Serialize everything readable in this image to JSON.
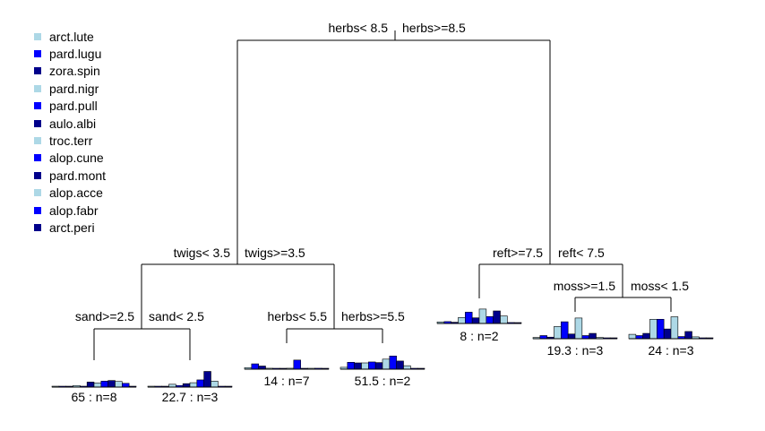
{
  "colors": {
    "light": "#add8e6",
    "blue": "#0000ff",
    "navy": "#00008b",
    "line": "#000000"
  },
  "legend": [
    {
      "label": "arct.lute",
      "color": "#add8e6"
    },
    {
      "label": "pard.lugu",
      "color": "#0000ff"
    },
    {
      "label": "zora.spin",
      "color": "#00008b"
    },
    {
      "label": "pard.nigr",
      "color": "#add8e6"
    },
    {
      "label": "pard.pull",
      "color": "#0000ff"
    },
    {
      "label": "aulo.albi",
      "color": "#00008b"
    },
    {
      "label": "troc.terr",
      "color": "#add8e6"
    },
    {
      "label": "alop.cune",
      "color": "#0000ff"
    },
    {
      "label": "pard.mont",
      "color": "#00008b"
    },
    {
      "label": "alop.acce",
      "color": "#add8e6"
    },
    {
      "label": "alop.fabr",
      "color": "#0000ff"
    },
    {
      "label": "arct.peri",
      "color": "#00008b"
    }
  ],
  "splits": {
    "root": {
      "left": "herbs< 8.5",
      "right": "herbs>=8.5"
    },
    "twigs": {
      "left": "twigs< 3.5",
      "right": "twigs>=3.5"
    },
    "sand": {
      "left": "sand>=2.5",
      "right": "sand< 2.5"
    },
    "herbs_low": {
      "left": "herbs< 5.5",
      "right": "herbs>=5.5"
    },
    "reft": {
      "left": "reft>=7.5",
      "right": "reft< 7.5"
    },
    "moss": {
      "left": "moss>=1.5",
      "right": "moss< 1.5"
    }
  },
  "leaves": [
    {
      "id": "leaf1",
      "label": "65 : n=8",
      "values": [
        0.1,
        0.1,
        0.1,
        0.5,
        0.2,
        1.6,
        1.3,
        1.9,
        2.1,
        1.8,
        1.2,
        0.1
      ]
    },
    {
      "id": "leaf2",
      "label": "22.7 : n=3",
      "values": [
        0.1,
        0.1,
        0.1,
        0.9,
        0.5,
        1.1,
        1.4,
        2.3,
        5.0,
        1.9,
        0.2,
        0.1
      ]
    },
    {
      "id": "leaf3",
      "label": "14 : n=7",
      "values": [
        0.5,
        1.7,
        1.0,
        0.3,
        0.2,
        0.1,
        0.3,
        2.9,
        0.2,
        0.1,
        0.3,
        0.1
      ]
    },
    {
      "id": "leaf4",
      "label": "51.5 : n=2",
      "values": [
        0.6,
        2.2,
        2.0,
        2.0,
        2.3,
        2.1,
        3.2,
        4.2,
        2.6,
        1.1,
        0.1,
        0.1
      ]
    },
    {
      "id": "leaf5",
      "label": "8 : n=2",
      "values": [
        0.5,
        0.6,
        0.4,
        1.9,
        3.6,
        1.8,
        4.6,
        2.2,
        4.0,
        2.4,
        0.3,
        0.1
      ]
    },
    {
      "id": "leaf6",
      "label": "19.3 : n=3",
      "values": [
        0.4,
        1.0,
        0.5,
        3.9,
        5.4,
        1.5,
        6.6,
        1.0,
        1.7,
        0.4,
        0.2,
        0.1
      ]
    },
    {
      "id": "leaf7",
      "label": "24 : n=3",
      "values": [
        1.4,
        1.0,
        1.7,
        6.2,
        6.2,
        3.1,
        7.0,
        0.7,
        2.3,
        0.6,
        0.2,
        0.1
      ]
    }
  ]
}
